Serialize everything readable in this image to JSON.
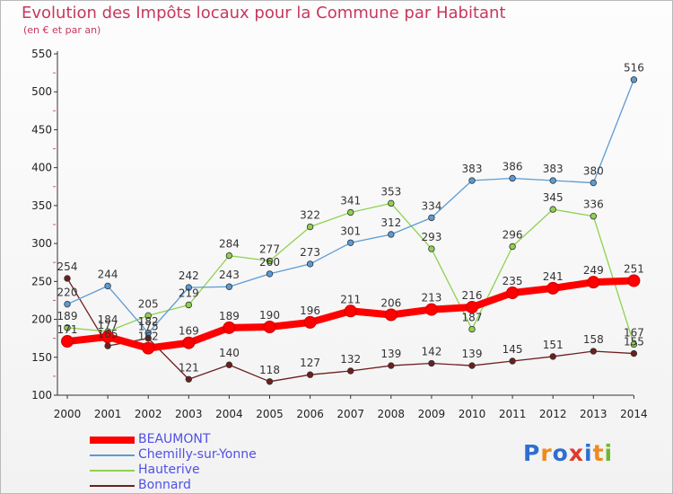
{
  "header": {
    "title": "Evolution des Impôts locaux pour la Commune par Habitant",
    "subtitle": "(en € et par an)"
  },
  "logo": {
    "text": "Proxiti"
  },
  "chart_data": {
    "type": "line",
    "title": "Evolution des Impôts locaux pour la Commune par Habitant",
    "subtitle": "(en € et par an)",
    "categories": [
      "2000",
      "2001",
      "2002",
      "2003",
      "2004",
      "2005",
      "2006",
      "2007",
      "2008",
      "2009",
      "2010",
      "2011",
      "2012",
      "2013",
      "2014"
    ],
    "ylim": [
      100,
      550
    ],
    "yticks": [
      100,
      150,
      200,
      250,
      300,
      350,
      400,
      450,
      500,
      550
    ],
    "grid": false,
    "legend_position": "bottom-left",
    "series": [
      {
        "name": "BEAUMONT",
        "color": "#ff0000",
        "values": [
          171,
          177,
          162,
          169,
          189,
          190,
          196,
          211,
          206,
          213,
          216,
          235,
          241,
          249,
          251
        ]
      },
      {
        "name": "Chemilly-sur-Yonne",
        "color": "#5b9bd5",
        "values": [
          220,
          244,
          182,
          242,
          243,
          260,
          273,
          301,
          312,
          334,
          383,
          386,
          383,
          380,
          516
        ]
      },
      {
        "name": "Hauterive",
        "color": "#8fd14f",
        "values": [
          189,
          184,
          205,
          219,
          284,
          277,
          322,
          341,
          353,
          293,
          187,
          296,
          345,
          336,
          167
        ]
      },
      {
        "name": "Bonnard",
        "color": "#6e1e1e",
        "values": [
          254,
          165,
          175,
          121,
          140,
          118,
          127,
          132,
          139,
          142,
          139,
          145,
          151,
          158,
          155
        ]
      }
    ]
  }
}
